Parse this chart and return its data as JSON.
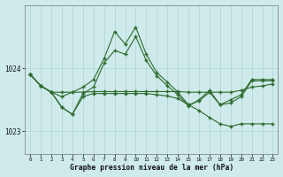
{
  "title": "Graphe pression niveau de la mer (hPa)",
  "background_color": "#ceeaea",
  "plot_bg_color": "#ceeaea",
  "line_color": "#2d6a2d",
  "grid_color": "#b0d4d4",
  "x_ticks": [
    0,
    1,
    2,
    3,
    4,
    5,
    6,
    7,
    8,
    9,
    10,
    11,
    12,
    13,
    14,
    15,
    16,
    17,
    18,
    19,
    20,
    21,
    22,
    23
  ],
  "y_ticks": [
    1023,
    1024
  ],
  "ylim": [
    1022.65,
    1025.0
  ],
  "xlim": [
    -0.5,
    23.5
  ],
  "seriesA": [
    1023.9,
    1023.72,
    1023.62,
    1023.55,
    1023.62,
    1023.7,
    1023.82,
    1024.15,
    1024.58,
    1024.38,
    1024.65,
    1024.22,
    1023.93,
    1023.78,
    1023.62,
    1023.42,
    1023.48,
    1023.62,
    1023.42,
    1023.5,
    1023.58,
    1023.82,
    1023.82,
    1023.82
  ],
  "seriesB": [
    1023.9,
    1023.72,
    1023.62,
    1023.62,
    1023.62,
    1023.62,
    1023.63,
    1023.63,
    1023.63,
    1023.63,
    1023.63,
    1023.63,
    1023.63,
    1023.63,
    1023.63,
    1023.62,
    1023.62,
    1023.62,
    1023.62,
    1023.62,
    1023.65,
    1023.7,
    1023.72,
    1023.75
  ],
  "seriesC": [
    1023.9,
    1023.72,
    1023.62,
    1023.38,
    1023.27,
    1023.6,
    1023.7,
    1024.08,
    1024.28,
    1024.22,
    1024.5,
    1024.12,
    1023.88,
    1023.72,
    1023.58,
    1023.4,
    1023.5,
    1023.65,
    1023.42,
    1023.45,
    1023.55,
    1023.8,
    1023.8,
    1023.8
  ],
  "seriesD": [
    1023.9,
    1023.72,
    1023.62,
    1023.38,
    1023.27,
    1023.55,
    1023.6,
    1023.6,
    1023.6,
    1023.6,
    1023.6,
    1023.6,
    1023.58,
    1023.56,
    1023.52,
    1023.42,
    1023.33,
    1023.22,
    1023.12,
    1023.08,
    1023.12,
    1023.12,
    1023.12,
    1023.12
  ]
}
